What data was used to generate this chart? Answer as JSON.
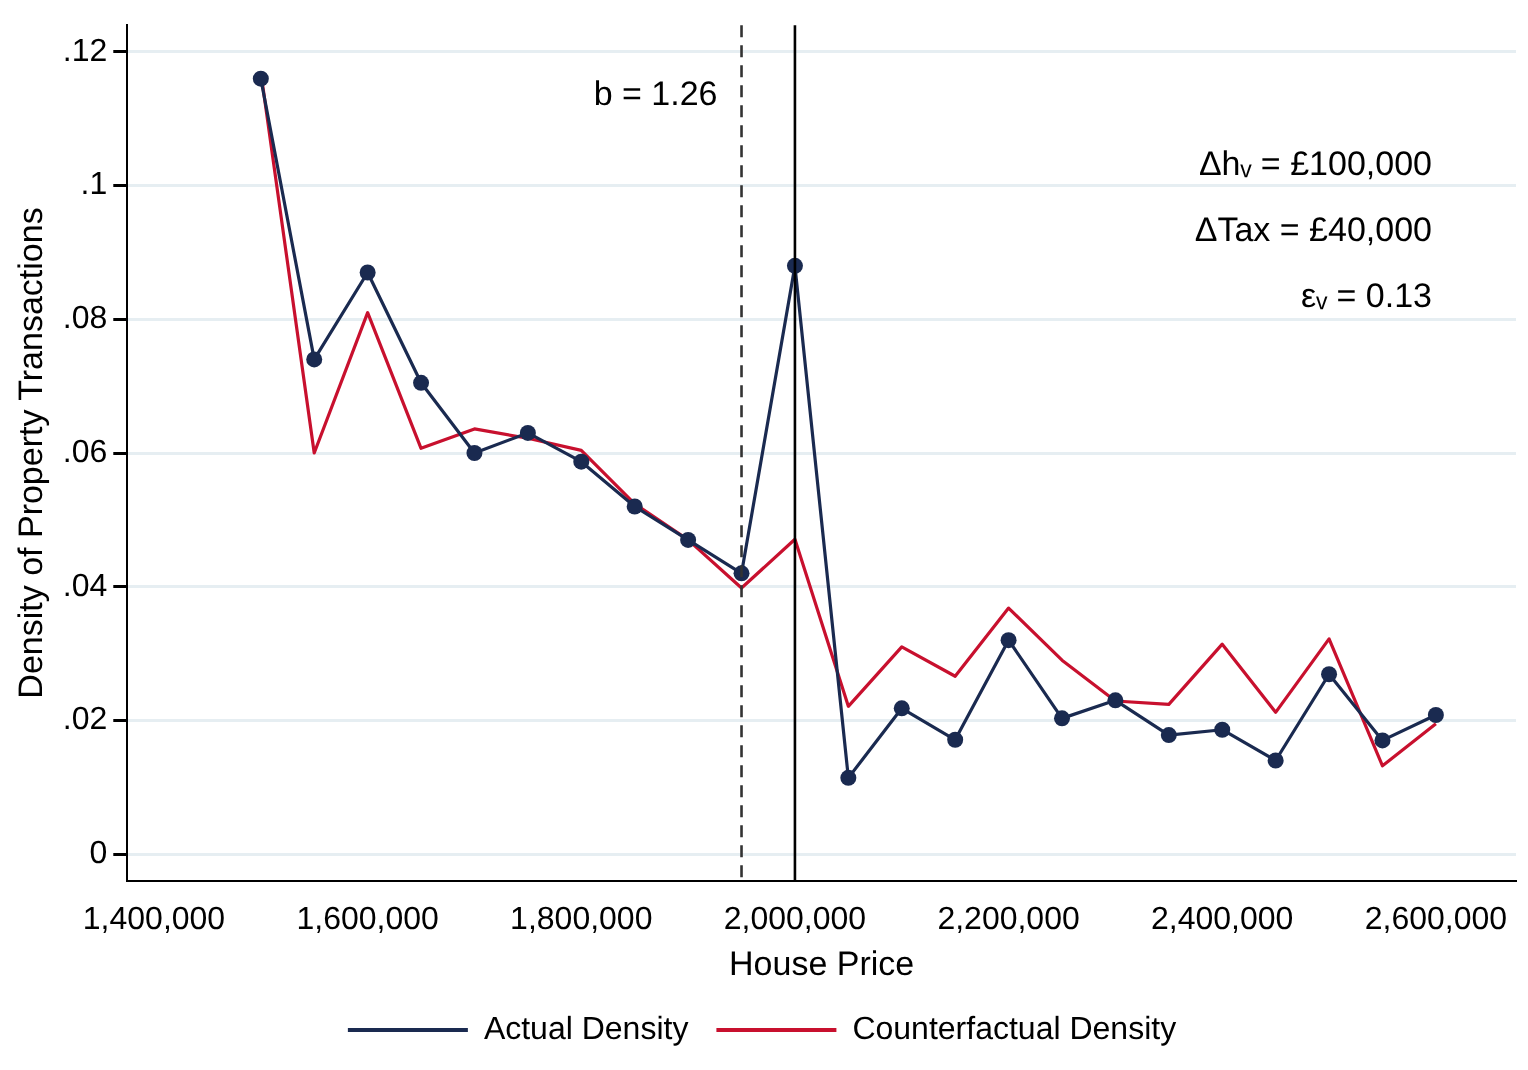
{
  "chart_data": {
    "type": "line",
    "xlabel": "House Price",
    "ylabel": "Density of Property Transactions",
    "x": [
      1500000,
      1550000,
      1600000,
      1650000,
      1700000,
      1750000,
      1800000,
      1850000,
      1900000,
      1950000,
      2000000,
      2050000,
      2100000,
      2150000,
      2200000,
      2250000,
      2300000,
      2350000,
      2400000,
      2450000,
      2500000,
      2550000,
      2600000
    ],
    "series": [
      {
        "name": "Actual Density",
        "color": "#1a2a50",
        "marker": "circle",
        "values": [
          0.116,
          0.074,
          0.087,
          0.0705,
          0.06,
          0.063,
          0.0587,
          0.052,
          0.047,
          0.042,
          0.088,
          0.0114,
          0.0218,
          0.0171,
          0.032,
          0.0203,
          0.023,
          0.0178,
          0.0186,
          0.014,
          0.0269,
          0.017,
          0.0208
        ]
      },
      {
        "name": "Counterfactual Density",
        "color": "#c8102e",
        "marker": "none",
        "values": [
          0.117,
          0.06,
          0.081,
          0.0607,
          0.0636,
          0.0622,
          0.0604,
          0.0524,
          0.047,
          0.0398,
          0.0471,
          0.0221,
          0.031,
          0.0266,
          0.0368,
          0.029,
          0.0229,
          0.0224,
          0.0314,
          0.0212,
          0.0322,
          0.0132,
          0.0195
        ]
      }
    ],
    "xlim": [
      1375000,
      2675000
    ],
    "xticks": [
      {
        "value": 1400000,
        "label": "1,400,000"
      },
      {
        "value": 1600000,
        "label": "1,600,000"
      },
      {
        "value": 1800000,
        "label": "1,800,000"
      },
      {
        "value": 2000000,
        "label": "2,000,000"
      },
      {
        "value": 2200000,
        "label": "2,200,000"
      },
      {
        "value": 2400000,
        "label": "2,400,000"
      },
      {
        "value": 2600000,
        "label": "2,600,000"
      }
    ],
    "ylim": [
      -0.004,
      0.124
    ],
    "yticks": [
      0,
      {
        "value": 0.02,
        "label": ".02"
      },
      {
        "value": 0.04,
        "label": ".04"
      },
      {
        "value": 0.06,
        "label": ".06"
      },
      {
        "value": 0.08,
        "label": ".08"
      },
      {
        "value": 0.1,
        "label": ".1"
      },
      {
        "value": 0.12,
        "label": ".12"
      }
    ],
    "ref_lines": [
      {
        "axis": "x",
        "value": 1950000,
        "line_style": "dashed",
        "color": "#333333"
      },
      {
        "axis": "x",
        "value": 2000000,
        "label": null,
        "line_style": "solid",
        "color": "#000000"
      }
    ],
    "annotations": [
      "b = 1.26",
      "Δhᵥ = £100,000",
      "ΔTax = £40,000",
      "εᵥ = 0.13"
    ],
    "grid": "y",
    "legend": "bottom",
    "line_style": "solid"
  }
}
